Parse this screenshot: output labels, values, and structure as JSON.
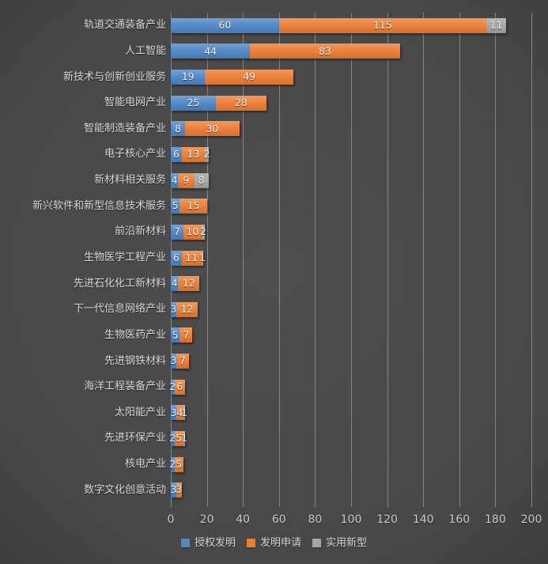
{
  "chart_data": {
    "type": "bar",
    "orientation": "horizontal",
    "stacked": true,
    "categories": [
      "轨道交通装备产业",
      "人工智能",
      "新技术与创新创业服务",
      "智能电网产业",
      "智能制造装备产业",
      "电子核心产业",
      "新材料相关服务",
      "新兴软件和新型信息技术服务",
      "前沿新材料",
      "生物医学工程产业",
      "先进石化化工新材料",
      "下一代信息网络产业",
      "生物医药产业",
      "先进钢铁材料",
      "海洋工程装备产业",
      "太阳能产业",
      "先进环保产业",
      "核电产业",
      "数字文化创意活动"
    ],
    "series": [
      {
        "name": "授权发明",
        "color": "#4E86C6",
        "values": [
          60,
          44,
          19,
          25,
          8,
          6,
          4,
          5,
          7,
          6,
          4,
          3,
          5,
          3,
          2,
          3,
          2,
          2,
          3
        ]
      },
      {
        "name": "发明申请",
        "color": "#ED7D31",
        "values": [
          115,
          83,
          49,
          28,
          30,
          13,
          9,
          15,
          10,
          11,
          12,
          12,
          7,
          7,
          6,
          4,
          5,
          5,
          3
        ]
      },
      {
        "name": "实用新型",
        "color": "#A5A5A5",
        "values": [
          11,
          0,
          0,
          0,
          0,
          2,
          8,
          0,
          2,
          1,
          0,
          0,
          0,
          0,
          0,
          1,
          1,
          0,
          0
        ]
      }
    ],
    "xlim": [
      0,
      200
    ],
    "x_ticks": [
      0,
      20,
      40,
      60,
      80,
      100,
      120,
      140,
      160,
      180,
      200
    ],
    "grid": "vertical",
    "legend_position": "bottom",
    "title": "",
    "xlabel": "",
    "ylabel": ""
  },
  "style": {
    "background_center": "#4a4a4a",
    "background_edge": "#232323",
    "gridline_color": "#8f8f8f",
    "label_color": "#d9d9d9",
    "value_label_color": "#f2f2f2",
    "tick_label_color": "#c9c9c9"
  }
}
